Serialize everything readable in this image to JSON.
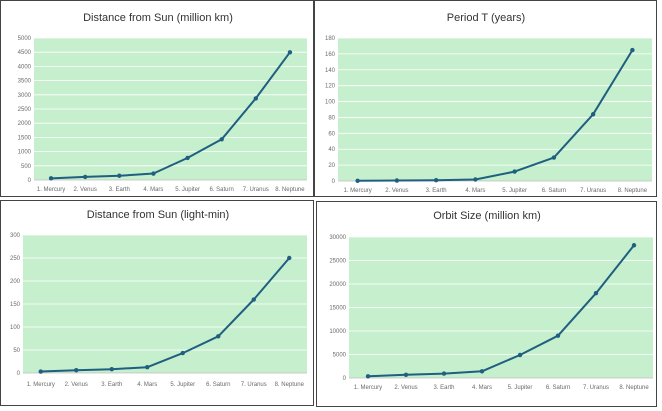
{
  "colors": {
    "plot_bg": "#c6efce",
    "line": "#1f5f7f",
    "grid": "#ffffff",
    "axis": "#bfbfbf"
  },
  "chart_data": [
    {
      "type": "line",
      "title": "Distance from Sun (million km)",
      "categories": [
        "1. Mercury",
        "2. Venus",
        "3. Earth",
        "4. Mars",
        "5. Jupiter",
        "6. Saturn",
        "7. Uranus",
        "8. Neptune"
      ],
      "series": [
        {
          "name": "Distance from Sun (million km)",
          "values": [
            57.9,
            108.2,
            149.6,
            227.9,
            778.6,
            1433.5,
            2872.5,
            4495.1
          ]
        }
      ],
      "ylim": [
        0,
        5000
      ],
      "yticks": [
        0,
        500,
        1000,
        1500,
        2000,
        2500,
        3000,
        3500,
        4000,
        4500,
        5000
      ],
      "ytick_labels": [
        "0",
        "500",
        "1000",
        "1500",
        "2000",
        "2500",
        "3000",
        "3500",
        "4000",
        "4500",
        "5000"
      ],
      "xlabel": "",
      "ylabel": "",
      "grid": true
    },
    {
      "type": "line",
      "title": "Period T (years)",
      "categories": [
        "1. Mercury",
        "2. Venus",
        "3. Earth",
        "4. Mars",
        "5. Jupiter",
        "6. Saturn",
        "7. Uranus",
        "8. Neptune"
      ],
      "series": [
        {
          "name": "Period T (years)",
          "values": [
            0.24,
            0.62,
            1.0,
            1.88,
            11.86,
            29.46,
            84.01,
            164.8
          ]
        }
      ],
      "ylim": [
        0,
        180
      ],
      "yticks": [
        0,
        20,
        40,
        60,
        80,
        100,
        120,
        140,
        160,
        180
      ],
      "ytick_labels": [
        "0",
        "20",
        "40",
        "60",
        "80",
        "100",
        "120",
        "140",
        "160",
        "180"
      ],
      "xlabel": "",
      "ylabel": "",
      "grid": true
    },
    {
      "type": "line",
      "title": "Distance from Sun (light-min)",
      "categories": [
        "1. Mercury",
        "2. Venus",
        "3. Earth",
        "4. Mars",
        "5. Jupiter",
        "6. Saturn",
        "7. Uranus",
        "8. Neptune"
      ],
      "series": [
        {
          "name": "Distance from Sun (light-min)",
          "values": [
            3.2,
            6.0,
            8.3,
            12.7,
            43.3,
            79.7,
            159.7,
            250.0
          ]
        }
      ],
      "ylim": [
        0,
        300
      ],
      "yticks": [
        0,
        50,
        100,
        150,
        200,
        250,
        300
      ],
      "ytick_labels": [
        "0",
        "50",
        "100",
        "150",
        "200",
        "250",
        "300"
      ],
      "xlabel": "",
      "ylabel": "",
      "grid": true
    },
    {
      "type": "line",
      "title": "Orbit Size (million km)",
      "categories": [
        "1. Mercury",
        "2. Venus",
        "3. Earth",
        "4. Mars",
        "5. Jupiter",
        "6. Saturn",
        "7. Uranus",
        "8. Neptune"
      ],
      "series": [
        {
          "name": "Orbit Size (million km)",
          "values": [
            364,
            680,
            940,
            1432,
            4892,
            9007,
            18048,
            28243
          ]
        }
      ],
      "ylim": [
        0,
        30000
      ],
      "yticks": [
        0,
        5000,
        10000,
        15000,
        20000,
        25000,
        30000
      ],
      "ytick_labels": [
        "0",
        "5000",
        "10000",
        "15000",
        "20000",
        "25000",
        "30000"
      ],
      "xlabel": "",
      "ylabel": "",
      "grid": true
    }
  ]
}
